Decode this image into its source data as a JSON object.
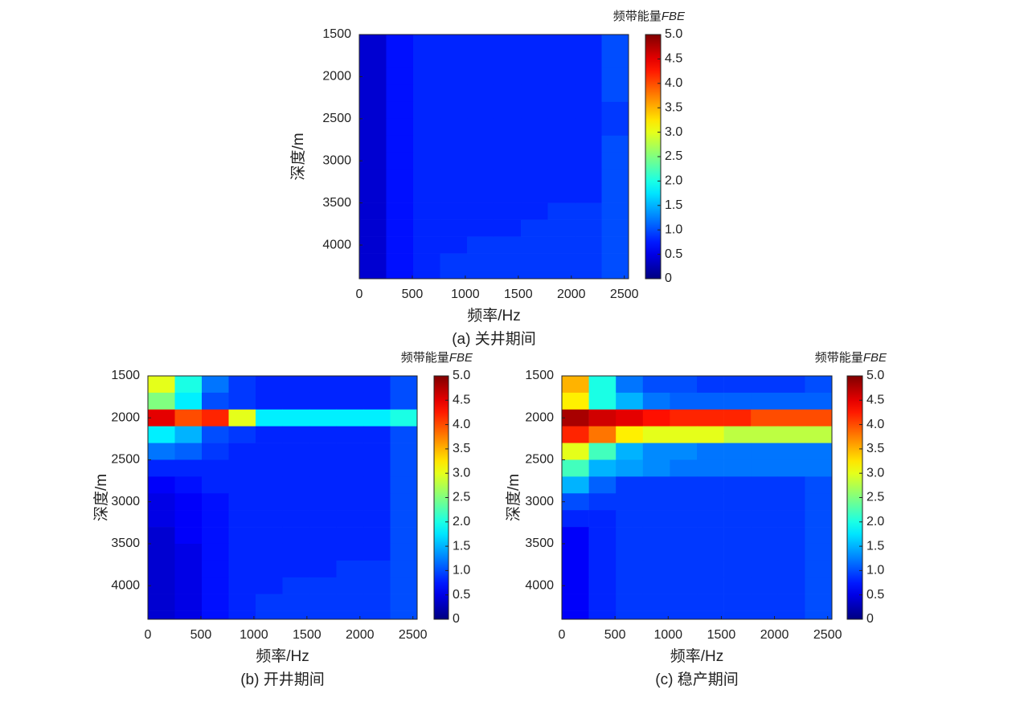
{
  "chart_data": [
    {
      "type": "heatmap",
      "title": "(a) 关井期间",
      "xlabel": "频率/Hz",
      "ylabel": "深度/m",
      "colorbar_title": "频带能量",
      "colorbar_title_unit": "FBE",
      "colormap": "jet",
      "xlim": [
        0,
        2540
      ],
      "ylim": [
        1500,
        4400
      ],
      "y_inverted": true,
      "xticks": [
        0,
        500,
        1000,
        1500,
        2000,
        2500
      ],
      "yticks": [
        1500,
        2000,
        2500,
        3000,
        3500,
        4000
      ],
      "zlim": [
        0,
        5
      ],
      "zticks": [
        0,
        0.5,
        {
          "value": 1,
          "label": "1.0"
        },
        1.5,
        {
          "value": 2,
          "label": "2.0"
        },
        2.5,
        {
          "value": 3,
          "label": "3.0"
        },
        3.5,
        {
          "value": 4,
          "label": "4.0"
        },
        4.5,
        {
          "value": 5,
          "label": "5.0"
        }
      ],
      "x": [
        127,
        381,
        635,
        889,
        1143,
        1397,
        1651,
        1905,
        2159,
        2413
      ],
      "y": [
        1600,
        1800,
        2000,
        2200,
        2400,
        2600,
        2800,
        3000,
        3200,
        3400,
        3600,
        3800,
        4000,
        4200,
        4400
      ],
      "z": [
        [
          0.4,
          0.7,
          0.8,
          0.8,
          0.8,
          0.8,
          0.8,
          0.8,
          0.8,
          1.0
        ],
        [
          0.4,
          0.7,
          0.8,
          0.8,
          0.8,
          0.8,
          0.8,
          0.8,
          0.8,
          1.0
        ],
        [
          0.4,
          0.7,
          0.8,
          0.8,
          0.8,
          0.8,
          0.8,
          0.8,
          0.8,
          1.0
        ],
        [
          0.4,
          0.7,
          0.8,
          0.8,
          0.8,
          0.8,
          0.8,
          0.8,
          0.8,
          1.0
        ],
        [
          0.4,
          0.7,
          0.8,
          0.8,
          0.8,
          0.8,
          0.8,
          0.8,
          0.8,
          0.9
        ],
        [
          0.4,
          0.7,
          0.8,
          0.8,
          0.8,
          0.8,
          0.8,
          0.8,
          0.8,
          0.9
        ],
        [
          0.4,
          0.7,
          0.8,
          0.8,
          0.8,
          0.8,
          0.8,
          0.8,
          0.8,
          1.0
        ],
        [
          0.4,
          0.7,
          0.8,
          0.8,
          0.8,
          0.8,
          0.8,
          0.8,
          0.8,
          1.0
        ],
        [
          0.4,
          0.7,
          0.8,
          0.8,
          0.8,
          0.8,
          0.8,
          0.8,
          0.8,
          1.0
        ],
        [
          0.4,
          0.7,
          0.8,
          0.8,
          0.8,
          0.8,
          0.8,
          0.8,
          0.8,
          1.0
        ],
        [
          0.4,
          0.7,
          0.8,
          0.8,
          0.8,
          0.8,
          0.8,
          0.9,
          0.9,
          1.0
        ],
        [
          0.4,
          0.7,
          0.8,
          0.8,
          0.8,
          0.8,
          0.9,
          0.9,
          0.9,
          1.0
        ],
        [
          0.4,
          0.7,
          0.8,
          0.8,
          0.9,
          0.9,
          0.9,
          0.9,
          0.9,
          1.0
        ],
        [
          0.4,
          0.7,
          0.8,
          0.9,
          0.9,
          0.9,
          0.9,
          0.9,
          0.9,
          1.0
        ],
        [
          0.4,
          0.7,
          0.8,
          0.9,
          0.9,
          0.9,
          0.9,
          0.9,
          0.9,
          1.0
        ]
      ]
    },
    {
      "type": "heatmap",
      "title": "(b) 开井期间",
      "xlabel": "频率/Hz",
      "ylabel": "深度/m",
      "colorbar_title": "频带能量",
      "colorbar_title_unit": "FBE",
      "colormap": "jet",
      "xlim": [
        0,
        2540
      ],
      "ylim": [
        1500,
        4400
      ],
      "y_inverted": true,
      "xticks": [
        0,
        500,
        1000,
        1500,
        2000,
        2500
      ],
      "yticks": [
        1500,
        2000,
        2500,
        3000,
        3500,
        4000
      ],
      "zlim": [
        0,
        5
      ],
      "zticks": [
        0,
        0.5,
        {
          "value": 1,
          "label": "1.0"
        },
        1.5,
        {
          "value": 2,
          "label": "2.0"
        },
        2.5,
        {
          "value": 3,
          "label": "3.0"
        },
        3.5,
        {
          "value": 4,
          "label": "4.0"
        },
        4.5,
        {
          "value": 5,
          "label": "5.0"
        }
      ],
      "x": [
        127,
        381,
        635,
        889,
        1143,
        1397,
        1651,
        1905,
        2159,
        2413
      ],
      "y": [
        1600,
        1800,
        2000,
        2200,
        2400,
        2600,
        2800,
        3000,
        3200,
        3400,
        3600,
        3800,
        4000,
        4200,
        4400
      ],
      "z": [
        [
          3.0,
          2.0,
          1.2,
          0.9,
          0.8,
          0.8,
          0.8,
          0.8,
          0.8,
          1.0
        ],
        [
          2.5,
          1.8,
          1.0,
          0.9,
          0.8,
          0.8,
          0.8,
          0.8,
          0.8,
          1.0
        ],
        [
          4.5,
          4.0,
          4.2,
          3.0,
          1.8,
          1.8,
          1.8,
          1.8,
          1.8,
          2.0
        ],
        [
          1.8,
          1.5,
          1.0,
          0.9,
          0.8,
          0.8,
          0.8,
          0.8,
          0.8,
          1.0
        ],
        [
          1.2,
          1.1,
          0.9,
          0.8,
          0.8,
          0.8,
          0.8,
          0.8,
          0.8,
          1.0
        ],
        [
          0.8,
          0.8,
          0.8,
          0.8,
          0.8,
          0.8,
          0.8,
          0.8,
          0.8,
          1.0
        ],
        [
          0.6,
          0.7,
          0.8,
          0.8,
          0.8,
          0.8,
          0.8,
          0.8,
          0.8,
          1.0
        ],
        [
          0.5,
          0.6,
          0.7,
          0.8,
          0.8,
          0.8,
          0.8,
          0.8,
          0.8,
          1.0
        ],
        [
          0.5,
          0.6,
          0.7,
          0.8,
          0.8,
          0.8,
          0.8,
          0.8,
          0.8,
          1.0
        ],
        [
          0.4,
          0.6,
          0.7,
          0.8,
          0.8,
          0.8,
          0.8,
          0.8,
          0.8,
          1.0
        ],
        [
          0.4,
          0.5,
          0.7,
          0.8,
          0.8,
          0.8,
          0.8,
          0.8,
          0.8,
          1.0
        ],
        [
          0.4,
          0.5,
          0.7,
          0.8,
          0.8,
          0.8,
          0.8,
          0.9,
          0.9,
          1.0
        ],
        [
          0.4,
          0.5,
          0.7,
          0.8,
          0.8,
          0.9,
          0.9,
          0.9,
          0.9,
          1.0
        ],
        [
          0.4,
          0.5,
          0.7,
          0.8,
          0.9,
          0.9,
          0.9,
          0.9,
          0.9,
          1.0
        ],
        [
          0.4,
          0.5,
          0.7,
          0.8,
          0.9,
          0.9,
          0.9,
          0.9,
          0.9,
          1.0
        ]
      ]
    },
    {
      "type": "heatmap",
      "title": "(c) 稳产期间",
      "xlabel": "频率/Hz",
      "ylabel": "深度/m",
      "colorbar_title": "频带能量",
      "colorbar_title_unit": "FBE",
      "colormap": "jet",
      "xlim": [
        0,
        2540
      ],
      "ylim": [
        1500,
        4400
      ],
      "y_inverted": true,
      "xticks": [
        0,
        500,
        1000,
        1500,
        2000,
        2500
      ],
      "yticks": [
        1500,
        2000,
        2500,
        3000,
        3500,
        4000
      ],
      "zlim": [
        0,
        5
      ],
      "zticks": [
        0,
        0.5,
        {
          "value": 1,
          "label": "1.0"
        },
        1.5,
        {
          "value": 2,
          "label": "2.0"
        },
        2.5,
        {
          "value": 3,
          "label": "3.0"
        },
        3.5,
        {
          "value": 4,
          "label": "4.0"
        },
        4.5,
        {
          "value": 5,
          "label": "5.0"
        }
      ],
      "x": [
        127,
        381,
        635,
        889,
        1143,
        1397,
        1651,
        1905,
        2159,
        2413
      ],
      "y": [
        1600,
        1800,
        2000,
        2200,
        2400,
        2600,
        2800,
        3000,
        3200,
        3400,
        3600,
        3800,
        4000,
        4200,
        4400
      ],
      "z": [
        [
          3.5,
          2.0,
          1.2,
          1.0,
          1.0,
          0.9,
          0.9,
          0.9,
          0.9,
          1.0
        ],
        [
          3.2,
          2.0,
          1.5,
          1.2,
          1.1,
          1.1,
          1.1,
          1.1,
          1.1,
          1.1
        ],
        [
          4.8,
          4.6,
          4.5,
          4.3,
          4.2,
          4.2,
          4.2,
          4.0,
          4.0,
          4.0
        ],
        [
          4.2,
          3.8,
          3.2,
          3.0,
          3.0,
          3.0,
          2.8,
          2.8,
          2.8,
          2.8
        ],
        [
          3.0,
          2.2,
          1.5,
          1.3,
          1.3,
          1.2,
          1.2,
          1.2,
          1.2,
          1.2
        ],
        [
          2.2,
          1.5,
          1.4,
          1.3,
          1.2,
          1.2,
          1.2,
          1.2,
          1.2,
          1.2
        ],
        [
          1.5,
          1.1,
          0.9,
          0.9,
          0.9,
          0.9,
          0.9,
          0.9,
          0.9,
          1.0
        ],
        [
          1.0,
          0.9,
          0.9,
          0.9,
          0.9,
          0.9,
          0.9,
          0.9,
          0.9,
          1.0
        ],
        [
          0.8,
          0.8,
          0.9,
          0.9,
          0.9,
          0.9,
          0.9,
          0.9,
          0.9,
          1.0
        ],
        [
          0.6,
          0.8,
          0.9,
          0.9,
          0.9,
          0.9,
          0.9,
          0.9,
          0.9,
          1.0
        ],
        [
          0.6,
          0.8,
          0.9,
          0.9,
          0.9,
          0.9,
          0.9,
          0.9,
          0.9,
          1.0
        ],
        [
          0.6,
          0.8,
          0.9,
          0.9,
          0.9,
          0.9,
          0.9,
          0.9,
          0.9,
          1.0
        ],
        [
          0.6,
          0.8,
          0.9,
          0.9,
          0.9,
          0.9,
          0.9,
          0.9,
          0.9,
          1.0
        ],
        [
          0.6,
          0.8,
          0.9,
          0.9,
          0.9,
          0.9,
          0.9,
          0.9,
          0.9,
          1.0
        ],
        [
          0.6,
          0.8,
          0.9,
          0.9,
          0.9,
          0.9,
          0.9,
          0.9,
          0.9,
          1.0
        ]
      ]
    }
  ]
}
